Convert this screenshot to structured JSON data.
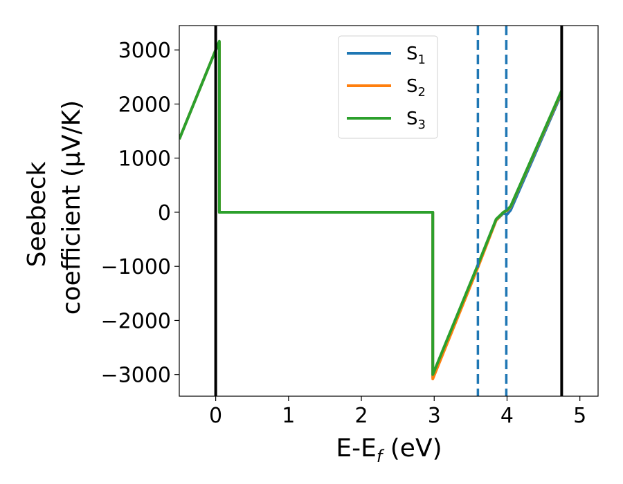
{
  "chart_data": {
    "type": "line",
    "xlabel": "E-E",
    "xlabel_sub": "f",
    "xlabel_unit": " (eV)",
    "ylabel_line1": "Seebeck",
    "ylabel_line2": "coefficient  (μV/K)",
    "xlim": [
      -0.5,
      5.25
    ],
    "ylim": [
      -3400,
      3450
    ],
    "x_ticks": [
      0,
      1,
      2,
      3,
      4,
      5
    ],
    "x_tick_labels": [
      "0",
      "1",
      "2",
      "3",
      "4",
      "5"
    ],
    "y_ticks": [
      -3000,
      -2000,
      -1000,
      0,
      1000,
      2000,
      3000
    ],
    "y_tick_labels": [
      "−3000",
      "−2000",
      "−1000",
      "0",
      "1000",
      "2000",
      "3000"
    ],
    "grid": false,
    "legend_position": "top-center",
    "vlines": [
      {
        "x": 0.0,
        "style": "solid",
        "color": "#000000"
      },
      {
        "x": 4.75,
        "style": "solid",
        "color": "#000000"
      },
      {
        "x": 3.6,
        "style": "dashed",
        "color": "#1f77b4"
      },
      {
        "x": 3.99,
        "style": "dashed",
        "color": "#1f77b4"
      }
    ],
    "series": [
      {
        "name": "S",
        "sub": "1",
        "color": "#1f77b4",
        "x": [
          -0.5,
          0.0,
          0.05,
          0.05,
          2.98,
          2.98,
          3.6,
          3.85,
          3.95,
          4.0,
          4.05,
          4.75
        ],
        "y": [
          1350,
          3000,
          3100,
          0,
          0,
          -3050,
          -1000,
          -150,
          -20,
          -40,
          40,
          2200
        ]
      },
      {
        "name": "S",
        "sub": "2",
        "color": "#ff7f0e",
        "x": [
          -0.5,
          0.0,
          0.05,
          0.05,
          2.98,
          2.98,
          3.6,
          3.85,
          3.95,
          4.0,
          4.05,
          4.75
        ],
        "y": [
          1350,
          3000,
          3150,
          0,
          0,
          -3080,
          -1020,
          -150,
          0,
          30,
          100,
          2230
        ]
      },
      {
        "name": "S",
        "sub": "3",
        "color": "#2ca02c",
        "x": [
          -0.5,
          0.0,
          0.05,
          0.05,
          2.98,
          2.98,
          3.6,
          3.85,
          3.95,
          4.0,
          4.05,
          4.75
        ],
        "y": [
          1350,
          3000,
          3160,
          0,
          0,
          -3000,
          -970,
          -130,
          0,
          40,
          110,
          2250
        ]
      }
    ]
  }
}
